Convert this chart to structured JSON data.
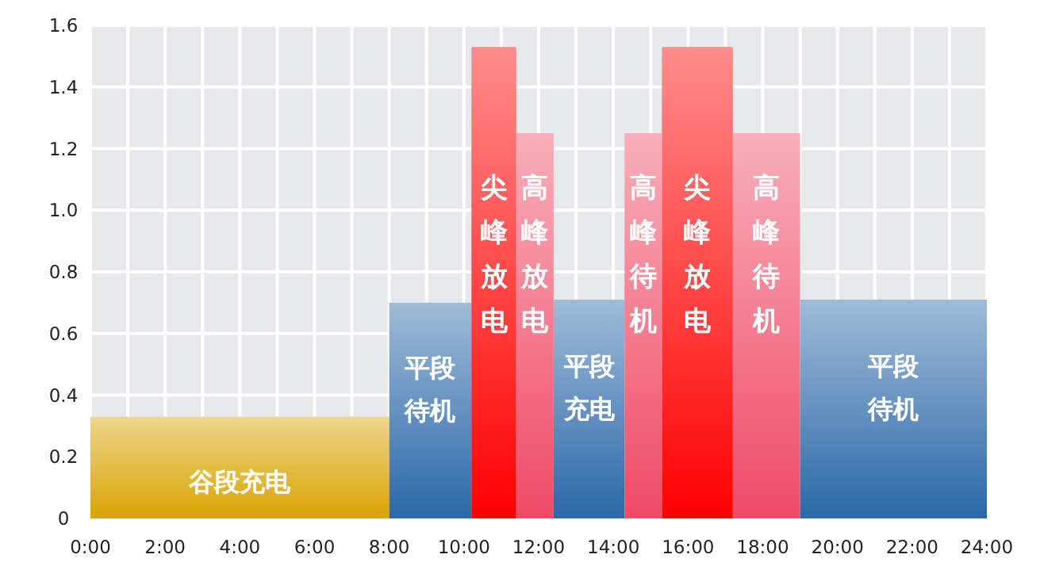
{
  "chart_data": {
    "type": "histogram",
    "bins": [
      0,
      8,
      10.2,
      11.4,
      12.4,
      14.3,
      15.3,
      17.2,
      19,
      24
    ],
    "values": [
      0.33,
      0.7,
      1.53,
      1.25,
      0.71,
      1.25,
      1.53,
      1.25,
      0.71
    ],
    "colors": [
      "#d9a400",
      "#2a68a8",
      "#ff0000",
      "#f04a66",
      "#2a68a8",
      "#f04a66",
      "#ff0000",
      "#f04a66",
      "#2a68a8"
    ],
    "xlim": [
      0,
      24
    ],
    "xticks": [
      {
        "value": 0,
        "label": "0:00"
      },
      {
        "value": 1,
        "label": null
      },
      {
        "value": 2,
        "label": "2:00"
      },
      {
        "value": 3,
        "label": null
      },
      {
        "value": 4,
        "label": "4:00"
      },
      {
        "value": 5,
        "label": null
      },
      {
        "value": 6,
        "label": "6:00"
      },
      {
        "value": 7,
        "label": null
      },
      {
        "value": 8,
        "label": "8:00"
      },
      {
        "value": 9,
        "label": null
      },
      {
        "value": 10,
        "label": "10:00"
      },
      {
        "value": 11,
        "label": null
      },
      {
        "value": 12,
        "label": "12:00"
      },
      {
        "value": 13,
        "label": null
      },
      {
        "value": 14,
        "label": "14:00"
      },
      {
        "value": 15,
        "label": null
      },
      {
        "value": 16,
        "label": "16:00"
      },
      {
        "value": 17,
        "label": null
      },
      {
        "value": 18,
        "label": "18:00"
      },
      {
        "value": 19,
        "label": null
      },
      {
        "value": 20,
        "label": "20:00"
      },
      {
        "value": 21,
        "label": null
      },
      {
        "value": 22,
        "label": "22:00"
      },
      {
        "value": 23,
        "label": null
      },
      {
        "value": 24,
        "label": "24:00"
      }
    ],
    "ylim": [
      0,
      1.6
    ],
    "yticks": [
      0,
      0.2,
      0.4,
      0.6,
      0.8,
      {
        "value": 1,
        "label": "1.0"
      },
      1.2,
      1.4,
      1.6
    ],
    "grid": true,
    "annotations": [
      "谷段充电",
      "平段待机",
      "尖峰放电",
      "高峰放电",
      "平段充电",
      "高峰待机",
      "尖峰放电",
      "高峰待机",
      "平段待机"
    ]
  }
}
